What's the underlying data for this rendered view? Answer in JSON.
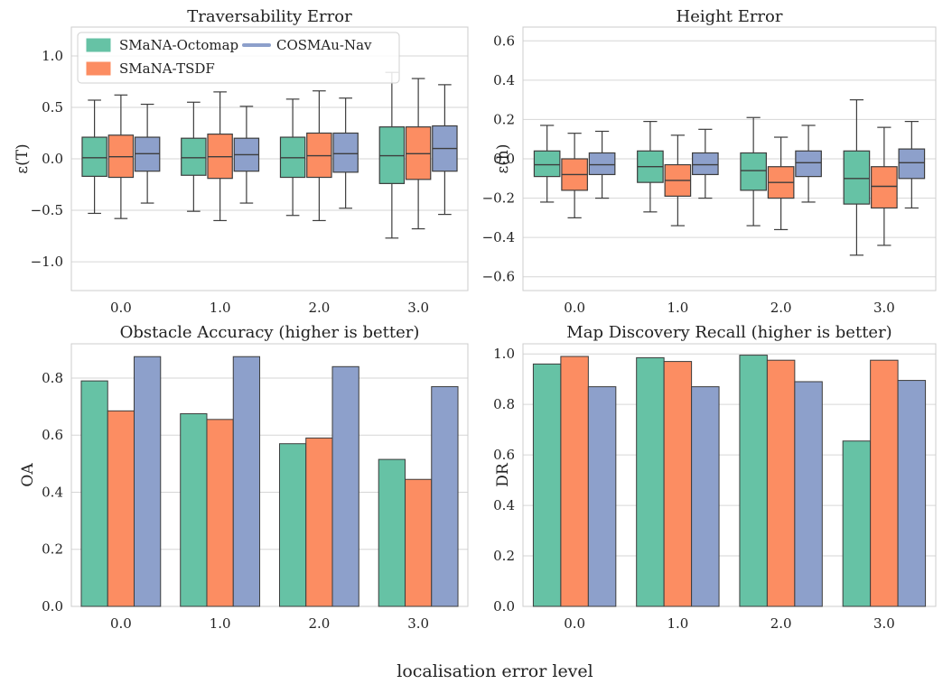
{
  "figure": {
    "supxlabel": "localisation error level"
  },
  "legend": {
    "items": [
      {
        "label": "SMaNA-Octomap",
        "color": "#66c2a5",
        "marker": "patch"
      },
      {
        "label": "SMaNA-TSDF",
        "color": "#fc8d62",
        "marker": "patch"
      },
      {
        "label": "COSMAu-Nav",
        "color": "#8da0cb",
        "marker": "line"
      }
    ],
    "location": "upper-left of first panel"
  },
  "chart_data": [
    {
      "type": "box",
      "title": "Traversability Error",
      "xlabel": "",
      "ylabel": "ε(T)",
      "categories": [
        "0.0",
        "1.0",
        "2.0",
        "3.0"
      ],
      "ylim": [
        -1.28,
        1.28
      ],
      "yticks": [
        1.0,
        0.5,
        0.0,
        -0.5,
        -1.0
      ],
      "ytick_labels": [
        "1.0",
        "0.5",
        "0.0",
        "−0.5",
        "−1.0"
      ],
      "grid": "horizontal",
      "series": [
        {
          "name": "SMaNA-Octomap",
          "color": "#66c2a5",
          "boxes": [
            {
              "whislo": -0.53,
              "q1": -0.17,
              "med": 0.01,
              "q3": 0.21,
              "whishi": 0.57
            },
            {
              "whislo": -0.51,
              "q1": -0.16,
              "med": 0.01,
              "q3": 0.2,
              "whishi": 0.55
            },
            {
              "whislo": -0.55,
              "q1": -0.18,
              "med": 0.01,
              "q3": 0.21,
              "whishi": 0.58
            },
            {
              "whislo": -0.77,
              "q1": -0.24,
              "med": 0.03,
              "q3": 0.31,
              "whishi": 0.84
            }
          ]
        },
        {
          "name": "SMaNA-TSDF",
          "color": "#fc8d62",
          "boxes": [
            {
              "whislo": -0.58,
              "q1": -0.18,
              "med": 0.02,
              "q3": 0.23,
              "whishi": 0.62
            },
            {
              "whislo": -0.6,
              "q1": -0.19,
              "med": 0.02,
              "q3": 0.24,
              "whishi": 0.65
            },
            {
              "whislo": -0.6,
              "q1": -0.18,
              "med": 0.03,
              "q3": 0.25,
              "whishi": 0.66
            },
            {
              "whislo": -0.68,
              "q1": -0.2,
              "med": 0.05,
              "q3": 0.31,
              "whishi": 0.78
            }
          ]
        },
        {
          "name": "COSMAu-Nav",
          "color": "#8da0cb",
          "boxes": [
            {
              "whislo": -0.43,
              "q1": -0.12,
              "med": 0.05,
              "q3": 0.21,
              "whishi": 0.53
            },
            {
              "whislo": -0.43,
              "q1": -0.12,
              "med": 0.04,
              "q3": 0.2,
              "whishi": 0.51
            },
            {
              "whislo": -0.48,
              "q1": -0.13,
              "med": 0.05,
              "q3": 0.25,
              "whishi": 0.59
            },
            {
              "whislo": -0.54,
              "q1": -0.12,
              "med": 0.1,
              "q3": 0.32,
              "whishi": 0.72
            }
          ]
        }
      ]
    },
    {
      "type": "box",
      "title": "Height Error",
      "xlabel": "",
      "ylabel": "ε(h)",
      "categories": [
        "0.0",
        "1.0",
        "2.0",
        "3.0"
      ],
      "ylim": [
        -0.67,
        0.67
      ],
      "yticks": [
        0.6,
        0.4,
        0.2,
        0.0,
        -0.2,
        -0.4,
        -0.6
      ],
      "ytick_labels": [
        "0.6",
        "0.4",
        "0.2",
        "0.0",
        "−0.2",
        "−0.4",
        "−0.6"
      ],
      "grid": "horizontal",
      "series": [
        {
          "name": "SMaNA-Octomap",
          "color": "#66c2a5",
          "boxes": [
            {
              "whislo": -0.22,
              "q1": -0.09,
              "med": -0.03,
              "q3": 0.04,
              "whishi": 0.17
            },
            {
              "whislo": -0.27,
              "q1": -0.12,
              "med": -0.04,
              "q3": 0.04,
              "whishi": 0.19
            },
            {
              "whislo": -0.34,
              "q1": -0.16,
              "med": -0.06,
              "q3": 0.03,
              "whishi": 0.21
            },
            {
              "whislo": -0.49,
              "q1": -0.23,
              "med": -0.1,
              "q3": 0.04,
              "whishi": 0.3
            }
          ]
        },
        {
          "name": "SMaNA-TSDF",
          "color": "#fc8d62",
          "boxes": [
            {
              "whislo": -0.3,
              "q1": -0.16,
              "med": -0.08,
              "q3": 0.0,
              "whishi": 0.13
            },
            {
              "whislo": -0.34,
              "q1": -0.19,
              "med": -0.11,
              "q3": -0.03,
              "whishi": 0.12
            },
            {
              "whislo": -0.36,
              "q1": -0.2,
              "med": -0.12,
              "q3": -0.04,
              "whishi": 0.11
            },
            {
              "whislo": -0.44,
              "q1": -0.25,
              "med": -0.14,
              "q3": -0.04,
              "whishi": 0.16
            }
          ]
        },
        {
          "name": "COSMAu-Nav",
          "color": "#8da0cb",
          "boxes": [
            {
              "whislo": -0.2,
              "q1": -0.08,
              "med": -0.03,
              "q3": 0.03,
              "whishi": 0.14
            },
            {
              "whislo": -0.2,
              "q1": -0.08,
              "med": -0.03,
              "q3": 0.03,
              "whishi": 0.15
            },
            {
              "whislo": -0.22,
              "q1": -0.09,
              "med": -0.02,
              "q3": 0.04,
              "whishi": 0.17
            },
            {
              "whislo": -0.25,
              "q1": -0.1,
              "med": -0.02,
              "q3": 0.05,
              "whishi": 0.19
            }
          ]
        }
      ]
    },
    {
      "type": "bar",
      "title": "Obstacle Accuracy (higher is better)",
      "xlabel": "",
      "ylabel": "OA",
      "categories": [
        "0.0",
        "1.0",
        "2.0",
        "3.0"
      ],
      "ylim": [
        0.0,
        0.92
      ],
      "yticks": [
        0.0,
        0.2,
        0.4,
        0.6,
        0.8
      ],
      "ytick_labels": [
        "0.0",
        "0.2",
        "0.4",
        "0.6",
        "0.8"
      ],
      "grid": "horizontal",
      "series": [
        {
          "name": "SMaNA-Octomap",
          "color": "#66c2a5",
          "values": [
            0.79,
            0.675,
            0.57,
            0.515
          ]
        },
        {
          "name": "SMaNA-TSDF",
          "color": "#fc8d62",
          "values": [
            0.685,
            0.655,
            0.59,
            0.445
          ]
        },
        {
          "name": "COSMAu-Nav",
          "color": "#8da0cb",
          "values": [
            0.875,
            0.875,
            0.84,
            0.77
          ]
        }
      ]
    },
    {
      "type": "bar",
      "title": "Map Discovery Recall (higher is better)",
      "xlabel": "",
      "ylabel": "DR",
      "categories": [
        "0.0",
        "1.0",
        "2.0",
        "3.0"
      ],
      "ylim": [
        0.0,
        1.04
      ],
      "yticks": [
        0.0,
        0.2,
        0.4,
        0.6,
        0.8,
        1.0
      ],
      "ytick_labels": [
        "0.0",
        "0.2",
        "0.4",
        "0.6",
        "0.8",
        "1.0"
      ],
      "grid": "horizontal",
      "series": [
        {
          "name": "SMaNA-Octomap",
          "color": "#66c2a5",
          "values": [
            0.96,
            0.985,
            0.995,
            0.655
          ]
        },
        {
          "name": "SMaNA-TSDF",
          "color": "#fc8d62",
          "values": [
            0.99,
            0.97,
            0.975,
            0.975
          ]
        },
        {
          "name": "COSMAu-Nav",
          "color": "#8da0cb",
          "values": [
            0.87,
            0.87,
            0.89,
            0.895
          ]
        }
      ]
    }
  ]
}
